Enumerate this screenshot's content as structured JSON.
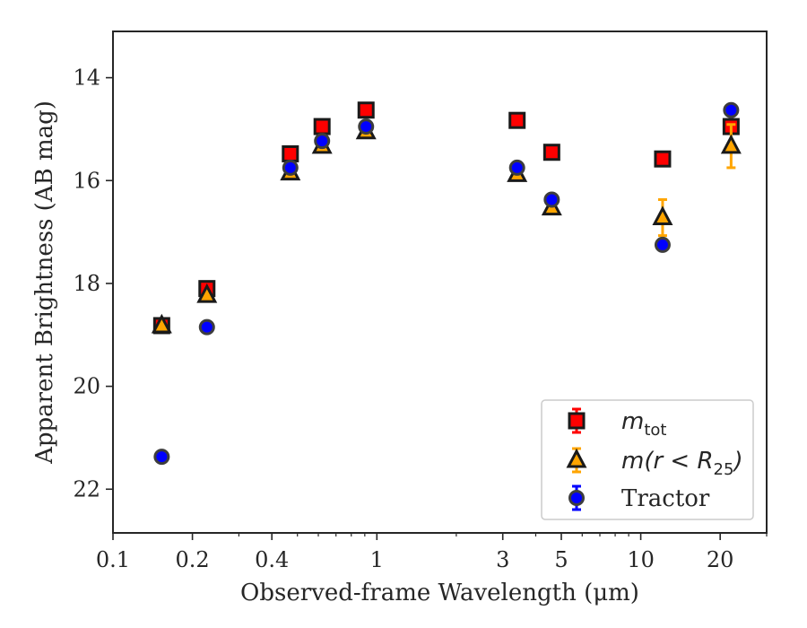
{
  "chart_data": {
    "type": "scatter",
    "xlabel": "Observed-frame Wavelength (μm)",
    "ylabel": "Apparent Brightness (AB mag)",
    "xscale": "log",
    "xlim": [
      0.1,
      30
    ],
    "ylim": [
      22.85,
      13.1
    ],
    "y_inverted": true,
    "xticks": [
      {
        "value": 0.1,
        "label": "0.1"
      },
      {
        "value": 0.2,
        "label": "0.2"
      },
      {
        "value": 0.4,
        "label": "0.4"
      },
      {
        "value": 1,
        "label": "1"
      },
      {
        "value": 3,
        "label": "3"
      },
      {
        "value": 5,
        "label": "5"
      },
      {
        "value": 10,
        "label": "10"
      },
      {
        "value": 20,
        "label": "20"
      }
    ],
    "yticks": [
      {
        "value": 14,
        "label": "14"
      },
      {
        "value": 16,
        "label": "16"
      },
      {
        "value": 18,
        "label": "18"
      },
      {
        "value": 20,
        "label": "20"
      },
      {
        "value": 22,
        "label": "22"
      }
    ],
    "grid": false,
    "legend_position": "lower-right",
    "series": [
      {
        "name": "m_tot",
        "legend_main": "m",
        "legend_sub": "tot",
        "marker": "square",
        "color": "#ff0000",
        "errcolor": "#ff0000",
        "x": [
          0.153,
          0.227,
          0.47,
          0.62,
          0.91,
          3.4,
          4.6,
          12.1,
          22.0
        ],
        "y": [
          18.82,
          18.1,
          15.48,
          14.95,
          14.63,
          14.83,
          15.45,
          15.58,
          14.95
        ],
        "yerr": [
          0.03,
          0.03,
          0.02,
          0.02,
          0.02,
          0.02,
          0.02,
          0.03,
          0.05
        ]
      },
      {
        "name": "m(r < R_25)",
        "legend_main": "m(r < R",
        "legend_sub": "25",
        "legend_tail": ")",
        "marker": "triangle",
        "color": "#ffa500",
        "errcolor": "#ffa500",
        "x": [
          0.153,
          0.227,
          0.47,
          0.62,
          0.91,
          3.4,
          4.6,
          12.1,
          22.0
        ],
        "y": [
          18.82,
          18.23,
          15.85,
          15.33,
          15.05,
          15.88,
          16.53,
          16.72,
          15.33
        ],
        "yerr": [
          0.03,
          0.03,
          0.02,
          0.02,
          0.02,
          0.03,
          0.05,
          0.35,
          0.42
        ]
      },
      {
        "name": "Tractor",
        "legend_main": "Tractor",
        "marker": "circle",
        "color": "#0000ff",
        "errcolor": "#0000ff",
        "x": [
          0.153,
          0.227,
          0.47,
          0.62,
          0.91,
          3.4,
          4.6,
          12.1,
          22.0
        ],
        "y": [
          21.37,
          18.85,
          15.75,
          15.23,
          14.95,
          15.75,
          16.37,
          17.25,
          14.63
        ],
        "yerr": [
          0.03,
          0.03,
          0.02,
          0.02,
          0.02,
          0.02,
          0.02,
          0.08,
          0.05
        ]
      }
    ]
  }
}
